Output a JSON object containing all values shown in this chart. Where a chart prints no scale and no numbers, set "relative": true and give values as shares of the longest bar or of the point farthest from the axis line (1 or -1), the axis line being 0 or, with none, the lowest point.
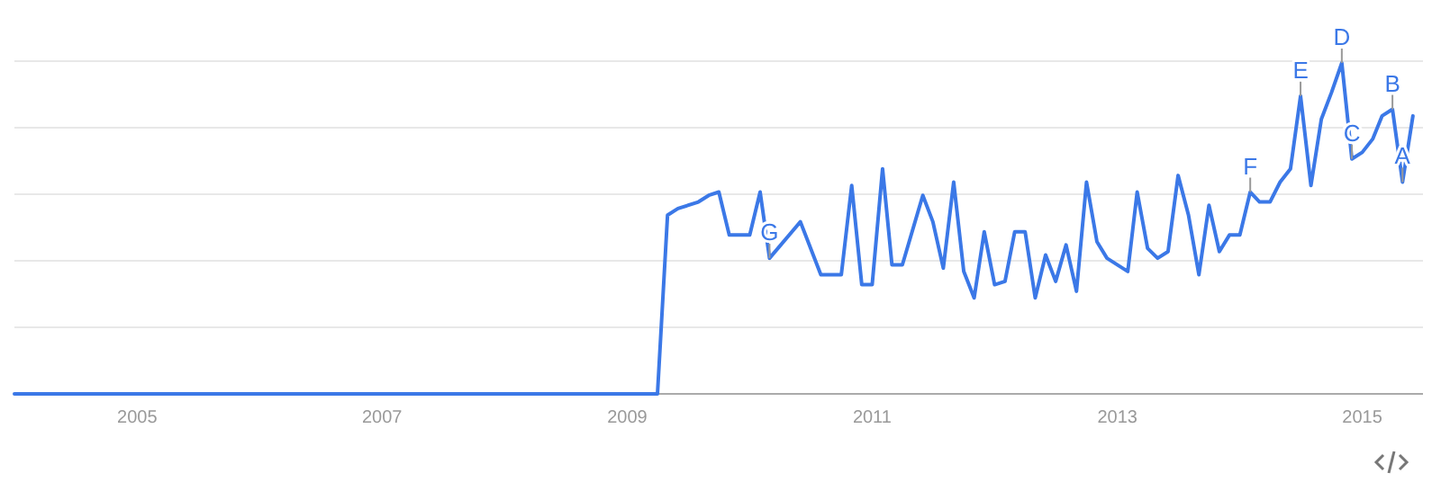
{
  "chart_data": {
    "type": "line",
    "relative": true,
    "grid": "y",
    "marker": "none",
    "line_style": "solid",
    "x": [
      "2004-01",
      "2009-04",
      "2009-05",
      "2009-06",
      "2009-08",
      "2009-09",
      "2009-10",
      "2009-11",
      "2010-01",
      "2010-02",
      "2010-03",
      "2010-06",
      "2010-08",
      "2010-10",
      "2010-11",
      "2010-12",
      "2011-01",
      "2011-02",
      "2011-03",
      "2011-04",
      "2011-06",
      "2011-07",
      "2011-08",
      "2011-09",
      "2011-10",
      "2011-11",
      "2011-12",
      "2012-01",
      "2012-02",
      "2012-03",
      "2012-04",
      "2012-05",
      "2012-06",
      "2012-07",
      "2012-08",
      "2012-09",
      "2012-10",
      "2012-11",
      "2012-12",
      "2013-02",
      "2013-03",
      "2013-04",
      "2013-05",
      "2013-06",
      "2013-07",
      "2013-08",
      "2013-09",
      "2013-10",
      "2013-11",
      "2013-12",
      "2014-01",
      "2014-02",
      "2014-03",
      "2014-04",
      "2014-05",
      "2014-06",
      "2014-07",
      "2014-08",
      "2014-09",
      "2014-10",
      "2014-11",
      "2014-12",
      "2015-01",
      "2015-02",
      "2015-03",
      "2015-04",
      "2015-05",
      "2015-06"
    ],
    "series": [
      {
        "color": "#3b78e7",
        "values": [
          0,
          0,
          0.54,
          0.56,
          0.58,
          0.6,
          0.61,
          0.48,
          0.48,
          0.61,
          0.41,
          0.52,
          0.36,
          0.36,
          0.63,
          0.33,
          0.33,
          0.68,
          0.39,
          0.39,
          0.6,
          0.52,
          0.38,
          0.64,
          0.37,
          0.29,
          0.49,
          0.33,
          0.34,
          0.49,
          0.49,
          0.29,
          0.42,
          0.34,
          0.45,
          0.31,
          0.64,
          0.46,
          0.41,
          0.37,
          0.61,
          0.44,
          0.41,
          0.43,
          0.66,
          0.54,
          0.36,
          0.57,
          0.43,
          0.48,
          0.48,
          0.61,
          0.58,
          0.58,
          0.64,
          0.68,
          0.9,
          0.63,
          0.83,
          0.91,
          1,
          0.71,
          0.73,
          0.77,
          0.84,
          0.86,
          0.64,
          0.84
        ]
      }
    ],
    "xlim": [
      "2004-01-01",
      "2015-07-01"
    ],
    "xticks": [
      {
        "value": "2005-01-01",
        "label": "2005"
      },
      {
        "value": "2007-01-01",
        "label": "2007"
      },
      {
        "value": "2009-01-01",
        "label": "2009"
      },
      {
        "value": "2011-01-01",
        "label": "2011"
      },
      {
        "value": "2013-01-01",
        "label": "2013"
      },
      {
        "value": "2015-01-01",
        "label": "2015"
      }
    ],
    "annotations": [
      {
        "text": "G",
        "x": "2010-03",
        "y": 0.41
      },
      {
        "text": "F",
        "x": "2014-02",
        "y": 0.61
      },
      {
        "text": "E",
        "x": "2014-07",
        "y": 0.9
      },
      {
        "text": "D",
        "x": "2014-11",
        "y": 1
      },
      {
        "text": "C",
        "x": "2014-12",
        "y": 0.71
      },
      {
        "text": "B",
        "x": "2015-04",
        "y": 0.86
      },
      {
        "text": "A",
        "x": "2015-05",
        "y": 0.64
      }
    ]
  }
}
